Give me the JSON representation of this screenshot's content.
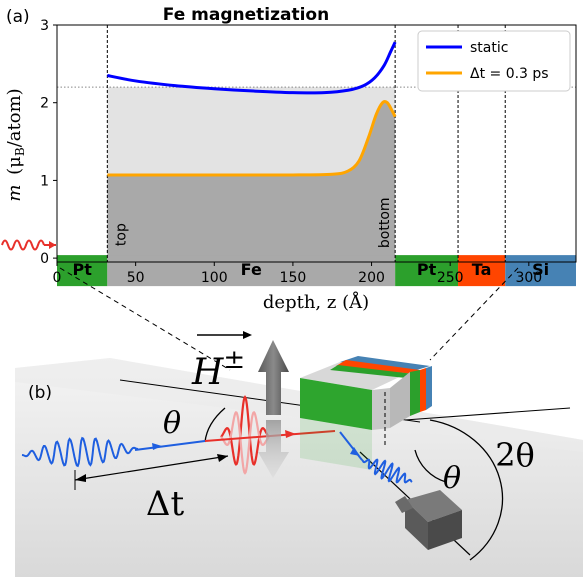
{
  "panel_a": {
    "panel_label": "(a)",
    "title": "Fe magnetization",
    "ylabel_m": "m",
    "ylabel_rest": "(μ",
    "ylabel_sub": "B",
    "ylabel_unit": "/atom)",
    "xlabel": "depth, z (Å)",
    "top_label": "top",
    "bottom_label": "bottom",
    "legend": [
      {
        "label": "static",
        "color": "#0000ff"
      },
      {
        "label": "Δt = 0.3 ps",
        "color": "#ffa500"
      }
    ],
    "layers": [
      {
        "name": "Pt",
        "from": 0,
        "to": 32,
        "color": "#2ca02c"
      },
      {
        "name": "Fe",
        "from": 32,
        "to": 215,
        "color": "#a9a9a9"
      },
      {
        "name": "Pt",
        "from": 215,
        "to": 255,
        "color": "#2ca02c"
      },
      {
        "name": "Ta",
        "from": 255,
        "to": 285,
        "color": "#ff4500"
      },
      {
        "name": "Si",
        "from": 285,
        "to": 330,
        "color": "#4682b4"
      }
    ]
  },
  "panel_b": {
    "panel_label": "(b)",
    "field_label": "H",
    "field_sup": "±",
    "theta": "θ",
    "two_theta": "2θ",
    "delay": "Δt"
  },
  "chart_data": {
    "type": "line",
    "title": "Fe magnetization",
    "xlabel": "depth, z (Å)",
    "ylabel": "m (μB/atom)",
    "xlim": [
      0,
      330
    ],
    "ylim": [
      -0.05,
      3
    ],
    "xticks": [
      0,
      50,
      100,
      150,
      200,
      250,
      300
    ],
    "yticks": [
      0,
      1,
      2,
      3
    ],
    "legend_position": "top-right",
    "static_reference_level": 2.2,
    "series": [
      {
        "name": "static",
        "color": "#0000ff",
        "x": [
          32,
          50,
          75,
          100,
          125,
          150,
          170,
          185,
          195,
          202,
          208,
          212,
          215
        ],
        "y": [
          2.35,
          2.28,
          2.22,
          2.18,
          2.15,
          2.13,
          2.13,
          2.16,
          2.22,
          2.32,
          2.48,
          2.65,
          2.78
        ]
      },
      {
        "name": "Δt = 0.3 ps",
        "color": "#ffa500",
        "x": [
          32,
          50,
          100,
          150,
          175,
          185,
          192,
          198,
          203,
          207,
          210,
          213,
          215
        ],
        "y": [
          1.07,
          1.07,
          1.07,
          1.07,
          1.08,
          1.12,
          1.25,
          1.55,
          1.85,
          2.0,
          2.0,
          1.9,
          1.82
        ]
      }
    ]
  }
}
